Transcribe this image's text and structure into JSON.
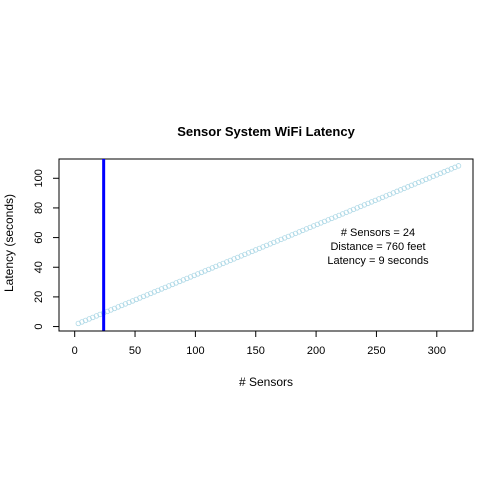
{
  "chart_data": {
    "type": "scatter",
    "title": "Sensor System WiFi Latency",
    "xlabel": "# Sensors",
    "ylabel": "Latency (seconds)",
    "xlim": [
      -13,
      330
    ],
    "ylim": [
      -3,
      113
    ],
    "x_ticks": [
      "0",
      "50",
      "100",
      "150",
      "200",
      "250",
      "300"
    ],
    "y_ticks": [
      "0",
      "20",
      "40",
      "60",
      "80",
      "100"
    ],
    "series": [
      {
        "x_start": 3,
        "x_end": 318,
        "x_step": 3,
        "slope": 0.3373,
        "intercept": 1.1,
        "point_style": "open-circle",
        "color": "#add8e6"
      }
    ],
    "vline": {
      "x": 24,
      "color": "#0000ff"
    },
    "annotations": [
      "# Sensors =  24",
      "Distance =  760  feet",
      "Latency =  9  seconds"
    ]
  }
}
